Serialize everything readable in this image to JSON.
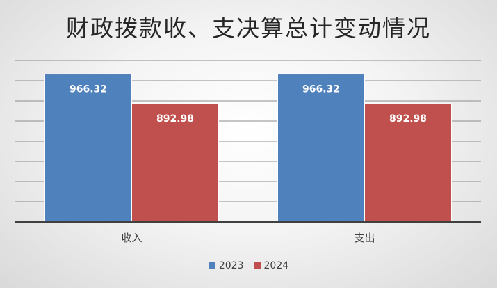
{
  "chart_data": {
    "type": "bar",
    "title": "财政拨款收、支决算总计变动情况",
    "categories": [
      "收入",
      "支出"
    ],
    "series": [
      {
        "name": "2023",
        "values": [
          966.32,
          966.32
        ],
        "color": "#4F81BD"
      },
      {
        "name": "2024",
        "values": [
          892.98,
          892.98
        ],
        "color": "#C0504D"
      }
    ],
    "ylim": [
      600,
      1000
    ],
    "grid": true,
    "legend": "bottom",
    "data_labels": true
  }
}
